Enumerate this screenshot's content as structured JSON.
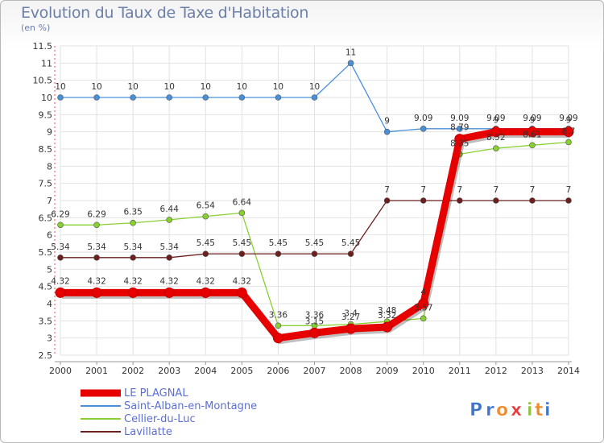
{
  "title": "Evolution du Taux de Taxe d'Habitation",
  "unit": "(en %)",
  "brand": [
    "P",
    "r",
    "o",
    "x",
    "i",
    "t",
    "i"
  ],
  "brand_colors": [
    "#3f74c9",
    "#3f74c9",
    "#f08a2a",
    "#e93a3a",
    "#8fc23a",
    "#f08a2a",
    "#3f74c9"
  ],
  "chart_data": {
    "type": "line",
    "x": [
      2000,
      2001,
      2002,
      2003,
      2004,
      2005,
      2006,
      2007,
      2008,
      2009,
      2010,
      2011,
      2012,
      2013,
      2014
    ],
    "ylim": [
      2.5,
      11.5
    ],
    "yticks": [
      2.5,
      3,
      3.5,
      4,
      4.5,
      5,
      5.5,
      6,
      6.5,
      7,
      7.5,
      8,
      8.5,
      9,
      9.5,
      10,
      10.5,
      11,
      11.5
    ],
    "ytick_labels": [
      "2.5",
      "3",
      "3.5",
      "4",
      "4.5",
      "5",
      "5.5",
      "6",
      "6.5",
      "7",
      "7.5",
      "8",
      "8.5",
      "9",
      "9.5",
      "10",
      "10.5",
      "11",
      "11.5"
    ],
    "grid": true,
    "legend_position": "bottom-left",
    "series": [
      {
        "name": "LE PLAGNAL",
        "color": "#e60000",
        "width": 9,
        "marker": 6,
        "label_dy": -11,
        "values": [
          4.32,
          4.32,
          4.32,
          4.32,
          4.32,
          4.32,
          3.0,
          3.15,
          3.27,
          3.32,
          4.0,
          8.79,
          9.0,
          9.0,
          9.0
        ],
        "labels": [
          "4.32",
          "4.32",
          "4.32",
          "4.32",
          "4.32",
          "4.32",
          "",
          "3.15",
          "3.27",
          "3.32",
          "4",
          "8.79",
          "9",
          "9",
          "9"
        ]
      },
      {
        "name": "Saint-Alban-en-Montagne",
        "color": "#4a90d9",
        "width": 1.3,
        "marker": 3.5,
        "label_dy": -10,
        "values": [
          10,
          10,
          10,
          10,
          10,
          10,
          10,
          10,
          11,
          9,
          9.09,
          9.09,
          9.09,
          9.09,
          9.09
        ],
        "labels": [
          "10",
          "10",
          "10",
          "10",
          "10",
          "10",
          "10",
          "10",
          "11",
          "9",
          "9.09",
          "9.09",
          "9.09",
          "9.09",
          "9.09"
        ]
      },
      {
        "name": "Cellier-du-Luc",
        "color": "#88d030",
        "width": 1.3,
        "marker": 3.5,
        "label_dy": -10,
        "values": [
          6.29,
          6.29,
          6.35,
          6.44,
          6.54,
          6.64,
          3.36,
          3.36,
          3.4,
          3.48,
          3.57,
          8.35,
          8.52,
          8.61,
          8.7
        ],
        "labels": [
          "6.29",
          "6.29",
          "6.35",
          "6.44",
          "6.54",
          "6.64",
          "3.36",
          "3.36",
          "3.4",
          "3.48",
          "3.57",
          "8.35",
          "8.52",
          "8.61",
          "8.7"
        ]
      },
      {
        "name": "Lavillatte",
        "color": "#6b1f1f",
        "width": 1.3,
        "marker": 3.5,
        "label_dy": -10,
        "values": [
          5.34,
          5.34,
          5.34,
          5.34,
          5.45,
          5.45,
          5.45,
          5.45,
          5.45,
          7,
          7,
          7,
          7,
          7,
          7
        ],
        "labels": [
          "5.34",
          "5.34",
          "5.34",
          "5.34",
          "5.45",
          "5.45",
          "5.45",
          "5.45",
          "5.45",
          "7",
          "7",
          "7",
          "7",
          "7",
          "7"
        ]
      }
    ]
  }
}
